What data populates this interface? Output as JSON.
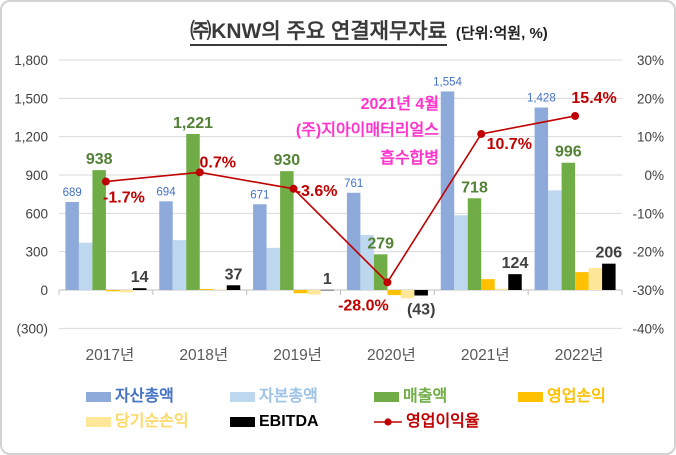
{
  "title": {
    "text": "㈜KNW의 주요 연결재무자료",
    "unit": "(단위:억원, %)"
  },
  "annotation": {
    "lines": [
      "2021년 4월",
      "(주)지아이매터리얼스",
      "흡수합병"
    ],
    "color": "#FF33CC"
  },
  "colors": {
    "grid": "#D9D9D9",
    "axis": "#BFBFBF",
    "tick_text": "#404040",
    "category_text": "#595959",
    "frame_border": "#D2D2D2",
    "background": "#FFFFFF"
  },
  "chart_data": {
    "type": "bar",
    "subtype": "grouped-bar-plus-line-combo",
    "title": "㈜KNW의 주요 연결재무자료",
    "unit_note": "(단위:억원, %)",
    "categories": [
      "2017년",
      "2018년",
      "2019년",
      "2020년",
      "2021년",
      "2022년"
    ],
    "series": [
      {
        "key": "total-assets",
        "name": "자산총액",
        "kind": "bar",
        "axis": "left",
        "color": "#8EAADB",
        "label_color": "#4472C4",
        "values": [
          689,
          694,
          671,
          761,
          1554,
          1428
        ],
        "labels": [
          "689",
          "694",
          "671",
          "761",
          "1,554",
          "1,428"
        ]
      },
      {
        "key": "total-equity",
        "name": "자본총액",
        "kind": "bar",
        "axis": "left",
        "color": "#BDD7EE",
        "estimated": true,
        "values": [
          370,
          390,
          330,
          430,
          585,
          780
        ]
      },
      {
        "key": "revenue",
        "name": "매출액",
        "kind": "bar",
        "axis": "left",
        "color": "#70AD47",
        "label_color": "#538135",
        "values": [
          938,
          1221,
          930,
          279,
          718,
          996
        ],
        "labels": [
          "938",
          "1,221",
          "930",
          "279",
          "718",
          "996"
        ]
      },
      {
        "key": "operating-profit",
        "name": "영업손익",
        "kind": "bar",
        "axis": "left",
        "color": "#FFC000",
        "estimated": true,
        "values": [
          -10,
          8,
          -25,
          -40,
          85,
          140
        ]
      },
      {
        "key": "net-income",
        "name": "당기순손익",
        "kind": "bar",
        "axis": "left",
        "color": "#FFE699",
        "estimated": true,
        "values": [
          -18,
          4,
          -35,
          -65,
          10,
          172
        ]
      },
      {
        "key": "ebitda",
        "name": "EBITDA",
        "kind": "bar",
        "axis": "left",
        "color": "#000000",
        "label_color": "#404040",
        "values": [
          14,
          37,
          1,
          -43,
          124,
          206
        ],
        "labels": [
          "14",
          "37",
          "1",
          "(43)",
          "124",
          "206"
        ]
      },
      {
        "key": "operating-margin",
        "name": "영업이익율",
        "kind": "line",
        "axis": "right",
        "color": "#C00000",
        "label_color": "#C00000",
        "values": [
          -1.7,
          0.7,
          -3.6,
          -28.0,
          10.7,
          15.4
        ],
        "labels": [
          "-1.7%",
          "0.7%",
          "-3.6%",
          "-28.0%",
          "10.7%",
          "15.4%"
        ]
      }
    ],
    "left_axis": {
      "min": -300,
      "max": 1800,
      "step": 300,
      "ticks": [
        "1,800",
        "1,500",
        "1,200",
        "900",
        "600",
        "300",
        "0",
        "(300)"
      ]
    },
    "right_axis": {
      "min": -40,
      "max": 30,
      "step": 10,
      "ticks": [
        "30%",
        "20%",
        "10%",
        "0%",
        "-10%",
        "-20%",
        "-30%",
        "-40%"
      ]
    },
    "grid": true,
    "legend_position": "bottom"
  },
  "legend": {
    "items": [
      {
        "key": "total-assets",
        "label": "자산총액",
        "color": "#8EAADB",
        "text_color": "#4472C4",
        "swatch": "bar"
      },
      {
        "key": "total-equity",
        "label": "자본총액",
        "color": "#BDD7EE",
        "text_color": "#9DC3E6",
        "swatch": "bar"
      },
      {
        "key": "revenue",
        "label": "매출액",
        "color": "#70AD47",
        "text_color": "#70AD47",
        "swatch": "bar"
      },
      {
        "key": "operating-profit",
        "label": "영업손익",
        "color": "#FFC000",
        "text_color": "#FFC000",
        "swatch": "bar"
      },
      {
        "key": "net-income",
        "label": "당기순손익",
        "color": "#FFE699",
        "text_color": "#FFD966",
        "swatch": "bar"
      },
      {
        "key": "ebitda",
        "label": "EBITDA",
        "color": "#000000",
        "text_color": "#000000",
        "swatch": "bar"
      },
      {
        "key": "operating-margin",
        "label": "영업이익율",
        "color": "#C00000",
        "text_color": "#C00000",
        "swatch": "line"
      }
    ]
  }
}
